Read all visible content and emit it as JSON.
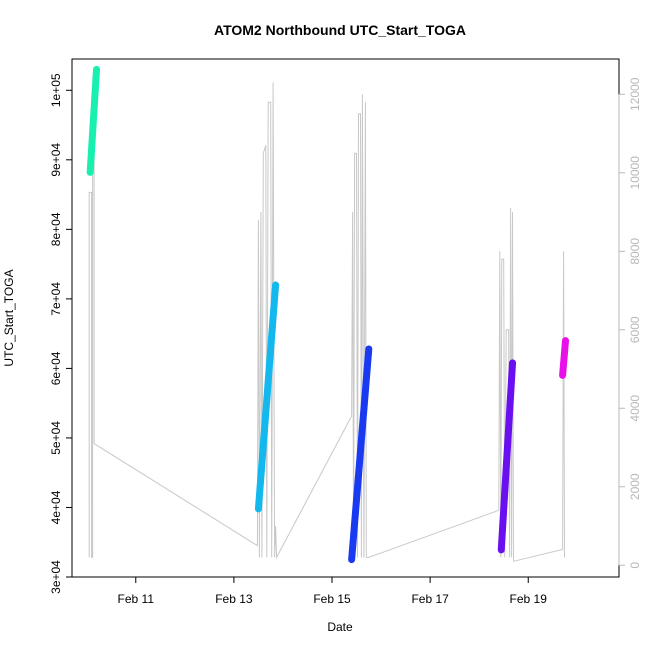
{
  "chart_data": {
    "type": "scatter",
    "title": "ATOM2 Northbound UTC_Start_TOGA",
    "xlabel": "Date",
    "ylabel": "UTC_Start_TOGA",
    "x_ticks": [
      "Feb 11",
      "Feb 13",
      "Feb 15",
      "Feb 17",
      "Feb 19"
    ],
    "x_tick_values": [
      11,
      13,
      15,
      17,
      19
    ],
    "xlim": [
      9.7,
      20.85
    ],
    "y_ticks": [
      "3e+04",
      "4e+04",
      "5e+04",
      "6e+04",
      "7e+04",
      "8e+04",
      "9e+04",
      "1e+05"
    ],
    "y_tick_values": [
      30000,
      40000,
      50000,
      60000,
      70000,
      80000,
      90000,
      100000
    ],
    "ylim": [
      30000,
      104500
    ],
    "y2_ticks": [
      "0",
      "2000",
      "4000",
      "6000",
      "8000",
      "10000",
      "12000"
    ],
    "y2_tick_values": [
      0,
      2000,
      4000,
      6000,
      8000,
      10000,
      12000
    ],
    "y2lim": [
      -300,
      12900
    ],
    "series": [
      {
        "color": "#19f0b0",
        "points": [
          [
            10.07,
            88200
          ],
          [
            10.2,
            103000
          ]
        ]
      },
      {
        "color": "#13b8ee",
        "points": [
          [
            13.5,
            39800
          ],
          [
            13.85,
            72000
          ]
        ]
      },
      {
        "color": "#1a3af2",
        "points": [
          [
            15.4,
            32500
          ],
          [
            15.75,
            62800
          ]
        ]
      },
      {
        "color": "#6a10f0",
        "points": [
          [
            18.45,
            33900
          ],
          [
            18.68,
            60800
          ]
        ]
      },
      {
        "color": "#e80fe8",
        "points": [
          [
            19.7,
            59000
          ],
          [
            19.76,
            64000
          ]
        ]
      }
    ],
    "secondary_line": {
      "color": "#c8c8c8",
      "points": [
        [
          10.05,
          200
        ],
        [
          10.05,
          9500
        ],
        [
          10.1,
          9500
        ],
        [
          10.1,
          200
        ],
        [
          10.12,
          200
        ],
        [
          10.12,
          11000
        ],
        [
          10.15,
          11000
        ],
        [
          10.15,
          3100
        ],
        [
          13.48,
          500
        ],
        [
          13.5,
          8800
        ],
        [
          13.52,
          200
        ],
        [
          13.55,
          9000
        ],
        [
          13.57,
          200
        ],
        [
          13.6,
          10500
        ],
        [
          13.65,
          10700
        ],
        [
          13.67,
          200
        ],
        [
          13.7,
          11800
        ],
        [
          13.75,
          11800
        ],
        [
          13.77,
          200
        ],
        [
          13.8,
          12300
        ],
        [
          13.83,
          200
        ],
        [
          13.85,
          1000
        ],
        [
          13.87,
          200
        ],
        [
          15.4,
          3800
        ],
        [
          15.42,
          9000
        ],
        [
          15.44,
          200
        ],
        [
          15.46,
          10500
        ],
        [
          15.5,
          10500
        ],
        [
          15.52,
          200
        ],
        [
          15.54,
          11500
        ],
        [
          15.58,
          11500
        ],
        [
          15.6,
          200
        ],
        [
          15.62,
          12000
        ],
        [
          15.65,
          200
        ],
        [
          15.68,
          11800
        ],
        [
          15.7,
          200
        ],
        [
          15.75,
          200
        ],
        [
          18.4,
          1400
        ],
        [
          18.42,
          8000
        ],
        [
          18.44,
          200
        ],
        [
          18.46,
          7800
        ],
        [
          18.5,
          7800
        ],
        [
          18.52,
          200
        ],
        [
          18.55,
          6000
        ],
        [
          18.6,
          6000
        ],
        [
          18.62,
          200
        ],
        [
          18.64,
          9100
        ],
        [
          18.66,
          200
        ],
        [
          18.68,
          9000
        ],
        [
          18.7,
          100
        ],
        [
          19.7,
          400
        ],
        [
          19.72,
          8000
        ],
        [
          19.74,
          200
        ]
      ]
    }
  }
}
